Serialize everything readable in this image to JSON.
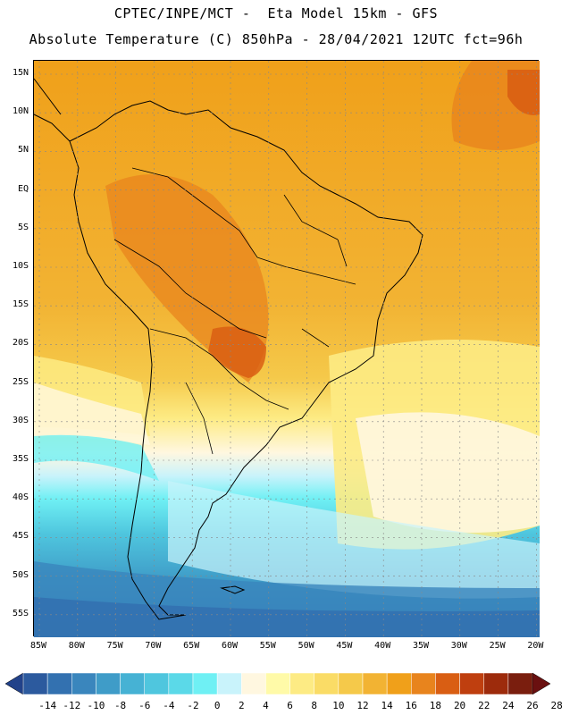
{
  "header": {
    "title_line1": "CPTEC/INPE/MCT -  Eta Model 15km - GFS",
    "title_line2": "Absolute Temperature (C) 850hPa - 28/04/2021 12UTC fct=96h"
  },
  "map": {
    "lat_labels": [
      "15N",
      "10N",
      "5N",
      "EQ",
      "5S",
      "10S",
      "15S",
      "20S",
      "25S",
      "30S",
      "35S",
      "40S",
      "45S",
      "50S",
      "55S"
    ],
    "lon_labels": [
      "85W",
      "80W",
      "75W",
      "70W",
      "65W",
      "60W",
      "55W",
      "50W",
      "45W",
      "40W",
      "35W",
      "30W",
      "25W",
      "20W"
    ]
  },
  "colorbar": {
    "labels": [
      "-14",
      "-12",
      "-10",
      "-8",
      "-6",
      "-4",
      "-2",
      "0",
      "2",
      "4",
      "6",
      "8",
      "10",
      "12",
      "14",
      "16",
      "18",
      "20",
      "22",
      "24",
      "26",
      "28"
    ],
    "colors": [
      "#22428a",
      "#2c5a9e",
      "#3371b0",
      "#3a86bd",
      "#3f9cc8",
      "#46b2d4",
      "#4fc6de",
      "#5bd9e8",
      "#6ff0f4",
      "#c9f3fb",
      "#fff7e0",
      "#fffaa8",
      "#fdeb84",
      "#fadc66",
      "#f5c94a",
      "#f2b333",
      "#f0a01a",
      "#e8841d",
      "#d95e13",
      "#bf3f0f",
      "#9d2b0c",
      "#7a1e0e",
      "#6a1010"
    ]
  }
}
